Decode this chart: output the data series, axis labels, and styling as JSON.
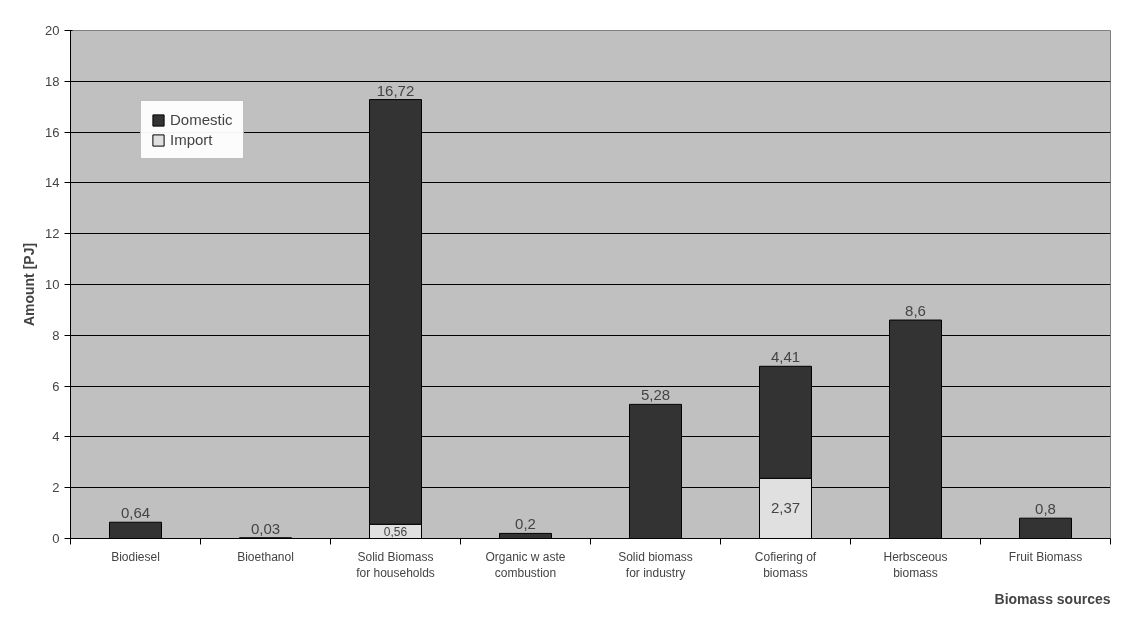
{
  "chart_data": {
    "type": "bar",
    "stacked": true,
    "xlabel": "Biomass sources",
    "ylabel": "Amount [PJ]",
    "categories": [
      "Biodiesel",
      "Bioethanol",
      "Solid Biomass\nfor households",
      "Organic w aste\ncombustion",
      "Solid biomass\nfor industry",
      "Cofiering of\nbiomass",
      "Herbsceous\nbiomass",
      "Fruit Biomass"
    ],
    "series": [
      {
        "name": "Import",
        "color": "#e0e0e0",
        "values": [
          0,
          0,
          0.56,
          0,
          0,
          2.37,
          0,
          0
        ],
        "value_labels": [
          null,
          null,
          "0,56",
          null,
          null,
          "2,37",
          null,
          null
        ]
      },
      {
        "name": "Domestic",
        "color": "#333333",
        "values": [
          0.64,
          0.03,
          16.72,
          0.2,
          5.28,
          4.41,
          8.6,
          0.8
        ],
        "value_labels": [
          "0,64",
          "0,03",
          "16,72",
          "0,2",
          "5,28",
          "4,41",
          "8,6",
          "0,8"
        ]
      }
    ],
    "ylim": [
      0,
      20
    ],
    "yticks": [
      0,
      2,
      4,
      6,
      8,
      10,
      12,
      14,
      16,
      18,
      20
    ],
    "grid": "y",
    "legend": "top left"
  }
}
